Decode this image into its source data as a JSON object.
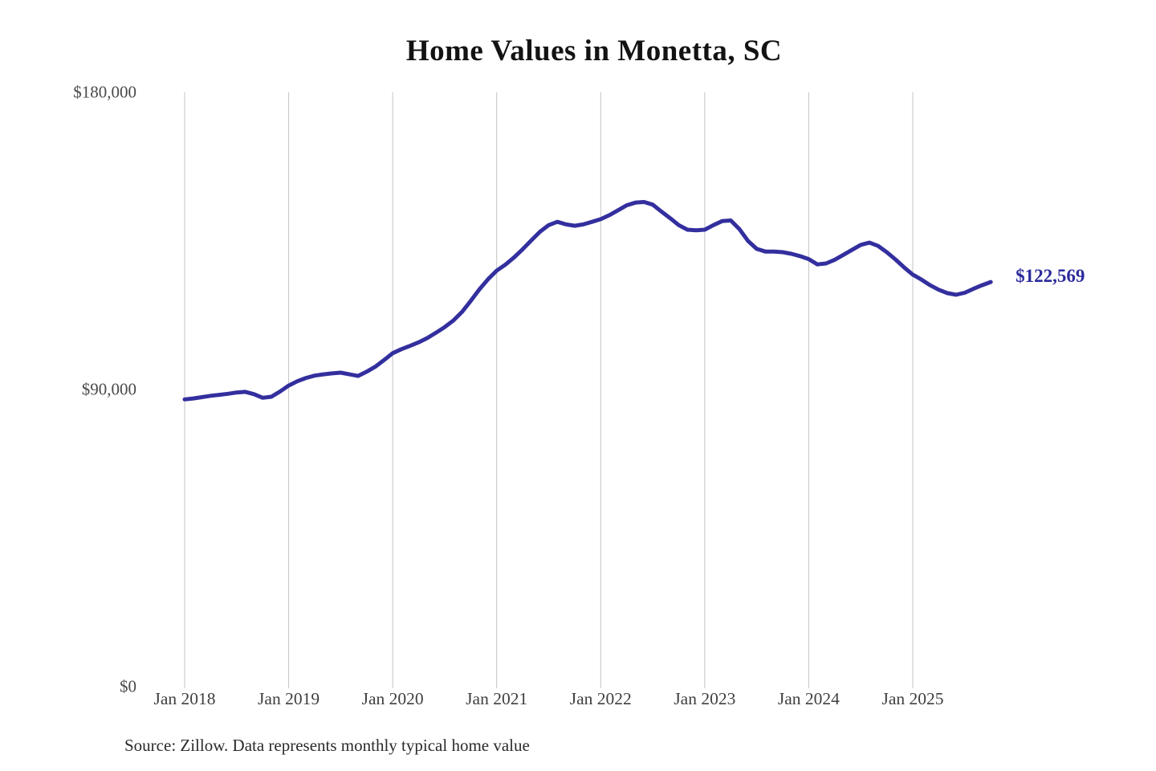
{
  "chart": {
    "title": "Home Values in Monetta, SC",
    "source": "Source: Zillow. Data represents monthly typical home value"
  },
  "chart_data": {
    "type": "line",
    "title": "Home Values in Monetta, SC",
    "source": "Source: Zillow. Data represents monthly typical home value",
    "end_label": "$122,569",
    "final_value": 122569,
    "ylim": [
      0,
      180000
    ],
    "y_tick_labels": [
      "$180,000",
      "$90,000",
      "$0"
    ],
    "x_tick_labels": [
      "Jan 2018",
      "Jan 2019",
      "Jan 2020",
      "Jan 2021",
      "Jan 2022",
      "Jan 2023",
      "Jan 2024",
      "Jan 2025"
    ],
    "grid": "vertical-only",
    "legend": "none",
    "line_color": "#332f9e",
    "gridline_color": "#c4c4c4",
    "x_interval": "monthly",
    "months": [
      "2018-01",
      "2018-02",
      "2018-03",
      "2018-04",
      "2018-05",
      "2018-06",
      "2018-07",
      "2018-08",
      "2018-09",
      "2018-10",
      "2018-11",
      "2018-12",
      "2019-01",
      "2019-02",
      "2019-03",
      "2019-04",
      "2019-05",
      "2019-06",
      "2019-07",
      "2019-08",
      "2019-09",
      "2019-10",
      "2019-11",
      "2019-12",
      "2020-01",
      "2020-02",
      "2020-03",
      "2020-04",
      "2020-05",
      "2020-06",
      "2020-07",
      "2020-08",
      "2020-09",
      "2020-10",
      "2020-11",
      "2020-12",
      "2021-01",
      "2021-02",
      "2021-03",
      "2021-04",
      "2021-05",
      "2021-06",
      "2021-07",
      "2021-08",
      "2021-09",
      "2021-10",
      "2021-11",
      "2021-12",
      "2022-01",
      "2022-02",
      "2022-03",
      "2022-04",
      "2022-05",
      "2022-06",
      "2022-07",
      "2022-08",
      "2022-09",
      "2022-10",
      "2022-11",
      "2022-12",
      "2023-01",
      "2023-02",
      "2023-03",
      "2023-04",
      "2023-05",
      "2023-06",
      "2023-07",
      "2023-08",
      "2023-09",
      "2023-10",
      "2023-11",
      "2023-12",
      "2024-01",
      "2024-02",
      "2024-03",
      "2024-04",
      "2024-05",
      "2024-06",
      "2024-07",
      "2024-08",
      "2024-09",
      "2024-10",
      "2024-11",
      "2024-12",
      "2025-01",
      "2025-02",
      "2025-03",
      "2025-04",
      "2025-05",
      "2025-06",
      "2025-07",
      "2025-08",
      "2025-09",
      "2025-10"
    ],
    "series": [
      {
        "name": "Typical home value",
        "values": [
          87000,
          87300,
          87700,
          88100,
          88400,
          88700,
          89100,
          89300,
          88600,
          87500,
          87800,
          89400,
          91200,
          92500,
          93500,
          94200,
          94600,
          94900,
          95100,
          94600,
          94100,
          95400,
          96900,
          98900,
          101000,
          102200,
          103200,
          104300,
          105600,
          107200,
          108900,
          110900,
          113500,
          116800,
          120300,
          123400,
          126000,
          127800,
          130000,
          132500,
          135200,
          137800,
          139800,
          140800,
          140000,
          139600,
          140000,
          140800,
          141600,
          142800,
          144300,
          145800,
          146600,
          146800,
          146000,
          143900,
          141900,
          139800,
          138400,
          138200,
          138400,
          139800,
          141000,
          141200,
          138600,
          135000,
          132600,
          131800,
          131800,
          131600,
          131100,
          130400,
          129500,
          127900,
          128200,
          129300,
          130800,
          132300,
          133800,
          134500,
          133500,
          131600,
          129400,
          127000,
          124800,
          123300,
          121600,
          120200,
          119200,
          118700,
          119300,
          120500,
          121600,
          122569
        ]
      }
    ]
  }
}
